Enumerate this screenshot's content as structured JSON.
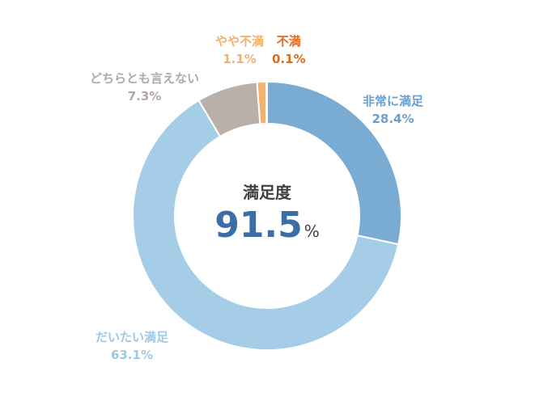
{
  "chart_data": {
    "type": "pie",
    "variant": "donut",
    "center": {
      "title": "満足度",
      "value": "91.5",
      "unit": "%"
    },
    "slices": [
      {
        "name": "非常に満足",
        "value": 28.4,
        "label": "28.4%",
        "color": "#7aabd3",
        "label_color": "#6d9fcb"
      },
      {
        "name": "だいたい満足",
        "value": 63.1,
        "label": "63.1%",
        "color": "#a6cde7",
        "label_color": "#9ec9e6"
      },
      {
        "name": "どちらとも言えない",
        "value": 7.3,
        "label": "7.3%",
        "color": "#bab0aa",
        "label_color": "#b3a9a4"
      },
      {
        "name": "やや不満",
        "value": 1.1,
        "label": "1.1%",
        "color": "#f5b26b",
        "label_color": "#f3b06b"
      },
      {
        "name": "不満",
        "value": 0.1,
        "label": "0.1%",
        "color": "#e8731c",
        "label_color": "#e16b17"
      }
    ]
  }
}
